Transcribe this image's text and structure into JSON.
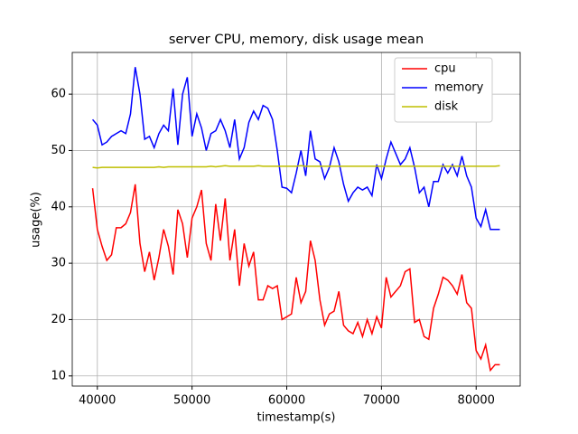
{
  "chart_data": {
    "type": "line",
    "title": "server CPU, memory, disk usage mean",
    "x_label": "timestamp(s)",
    "y_label": "usage(%)",
    "x": [
      39500,
      40000,
      40500,
      41000,
      41500,
      42000,
      42500,
      43000,
      43500,
      44000,
      44500,
      45000,
      45500,
      46000,
      46500,
      47000,
      47500,
      48000,
      48500,
      49000,
      49500,
      50000,
      50500,
      51000,
      51500,
      52000,
      52500,
      53000,
      53500,
      54000,
      54500,
      55000,
      55500,
      56000,
      56500,
      57000,
      57500,
      58000,
      58500,
      59000,
      59500,
      60000,
      60500,
      61000,
      61500,
      62000,
      62500,
      63000,
      63500,
      64000,
      64500,
      65000,
      65500,
      66000,
      66500,
      67000,
      67500,
      68000,
      68500,
      69000,
      69500,
      70000,
      70500,
      71000,
      71500,
      72000,
      72500,
      73000,
      73500,
      74000,
      74500,
      75000,
      75500,
      76000,
      76500,
      77000,
      77500,
      78000,
      78500,
      79000,
      79500,
      80000,
      80500,
      81000,
      81500,
      82000,
      82500
    ],
    "series": [
      {
        "name": "cpu",
        "color": "#ff0000",
        "values": [
          43.3,
          36,
          33,
          30.5,
          31.5,
          36.3,
          36.3,
          37,
          39,
          44,
          33.5,
          28.5,
          32,
          27,
          31,
          36,
          33,
          28,
          39.5,
          37,
          31,
          38,
          40,
          43,
          33.5,
          30.5,
          40.5,
          34,
          41.5,
          30.5,
          36,
          26,
          33.5,
          29.5,
          32,
          23.5,
          23.5,
          26,
          25.5,
          26,
          20,
          20.5,
          21,
          27.5,
          23,
          25,
          34,
          30.5,
          23.5,
          19,
          21,
          21.5,
          25,
          19,
          18,
          17.5,
          19.5,
          17,
          20,
          17.5,
          20.5,
          18.5,
          27.5,
          24,
          25,
          26,
          28.5,
          29,
          19.5,
          20,
          17,
          16.5,
          22,
          24.5,
          27.5,
          27,
          26,
          24.5,
          28,
          23,
          22,
          14.5,
          13,
          15.5,
          11,
          12,
          12
        ]
      },
      {
        "name": "memory",
        "color": "#0000ff",
        "values": [
          55.5,
          54.5,
          51,
          51.5,
          52.5,
          53,
          53.5,
          53,
          56.5,
          64.8,
          60,
          52,
          52.5,
          50.5,
          53,
          54.5,
          53.5,
          61,
          51,
          60,
          63,
          52.5,
          56.5,
          54,
          50,
          53,
          53.5,
          55.5,
          53.5,
          50.5,
          55.5,
          48.5,
          50.5,
          55,
          57,
          55.5,
          58,
          57.5,
          55.5,
          50,
          43.5,
          43.3,
          42.5,
          46,
          50,
          45.5,
          53.5,
          48.5,
          48,
          45,
          47,
          50.5,
          48,
          44,
          41,
          42.5,
          43.5,
          43,
          43.5,
          42,
          47.5,
          45,
          48.5,
          51.5,
          49.5,
          47.5,
          48.5,
          50.5,
          47,
          42.5,
          43.5,
          40,
          44.5,
          44.5,
          47.5,
          46,
          47.5,
          45.5,
          49,
          45.5,
          43.5,
          38,
          36.5,
          39.5,
          36,
          36,
          36
        ]
      },
      {
        "name": "disk",
        "color": "#bfbf00",
        "values": [
          47,
          46.9,
          47,
          47,
          47,
          47,
          47,
          47,
          47,
          47,
          47,
          47,
          47,
          47,
          47.1,
          47,
          47.1,
          47.1,
          47.1,
          47.1,
          47.1,
          47.1,
          47.1,
          47.1,
          47.1,
          47.2,
          47.1,
          47.2,
          47.3,
          47.2,
          47.2,
          47.2,
          47.2,
          47.2,
          47.2,
          47.3,
          47.2,
          47.2,
          47.2,
          47.2,
          47.2,
          47.2,
          47.2,
          47.2,
          47.3,
          47.2,
          47.2,
          47.2,
          47.2,
          47.2,
          47.2,
          47.2,
          47.2,
          47.2,
          47.2,
          47.2,
          47.2,
          47.2,
          47.2,
          47.2,
          47.2,
          47.2,
          47.2,
          47.2,
          47.2,
          47.2,
          47.2,
          47.2,
          47.2,
          47.2,
          47.2,
          47.2,
          47.2,
          47.2,
          47.2,
          47.2,
          47.2,
          47.2,
          47.2,
          47.2,
          47.2,
          47.2,
          47.2,
          47.2,
          47.2,
          47.2,
          47.3
        ]
      }
    ],
    "xlim": [
      37350,
      84650
    ],
    "ylim": [
      8.2,
      67.4
    ],
    "xticks": [
      40000,
      50000,
      60000,
      70000,
      80000
    ],
    "yticks": [
      10,
      20,
      30,
      40,
      50,
      60
    ],
    "grid": true,
    "legend": "upper right"
  }
}
